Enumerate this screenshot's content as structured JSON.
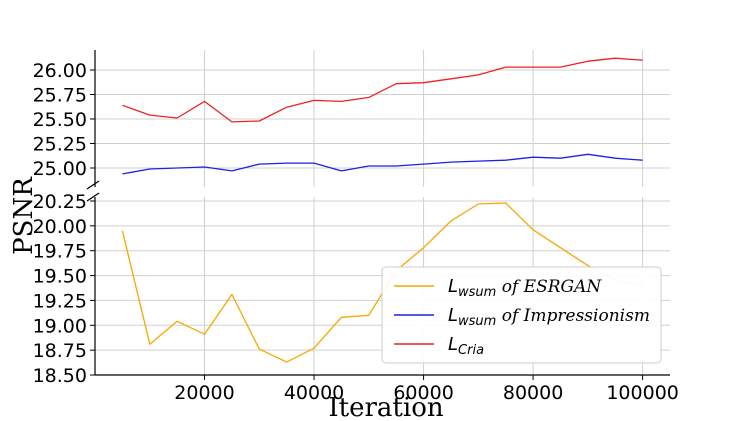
{
  "chart_data": {
    "type": "line",
    "xlabel": "Iteration",
    "ylabel": "PSNR",
    "xlim": [
      0,
      105000
    ],
    "x_ticks": [
      20000,
      40000,
      60000,
      80000,
      100000
    ],
    "broken_y_axis": true,
    "grid": true,
    "legend_position": "lower-right",
    "panels": [
      {
        "name": "top",
        "ylim": [
          24.8,
          26.2
        ],
        "y_ticks": [
          "25.00",
          "25.25",
          "25.50",
          "25.75",
          "26.00"
        ]
      },
      {
        "name": "bottom",
        "ylim": [
          18.5,
          20.3
        ],
        "y_ticks": [
          "18.50",
          "18.75",
          "19.00",
          "19.25",
          "19.50",
          "19.75",
          "20.00",
          "20.25"
        ]
      }
    ],
    "x": [
      5000,
      10000,
      15000,
      20000,
      25000,
      30000,
      35000,
      40000,
      45000,
      50000,
      55000,
      60000,
      65000,
      70000,
      75000,
      80000,
      85000,
      90000,
      95000,
      100000
    ],
    "series": [
      {
        "name": "L_wsum of ESRGAN",
        "legend": {
          "main": "L",
          "sub": "wsum",
          "suffix": " of ESRGAN"
        },
        "color": "#f5a800",
        "panel": "bottom",
        "values": [
          19.95,
          18.81,
          19.04,
          18.91,
          19.31,
          18.76,
          18.63,
          18.77,
          19.08,
          19.1,
          19.55,
          19.78,
          20.05,
          20.22,
          20.23,
          19.96,
          19.78,
          19.6,
          19.45,
          19.4
        ]
      },
      {
        "name": "L_wsum of Impressionism",
        "legend": {
          "main": "L",
          "sub": "wsum",
          "suffix": " of Impressionism"
        },
        "color": "#1f1fe6",
        "panel": "top",
        "values": [
          24.94,
          24.99,
          25.0,
          25.01,
          24.97,
          25.04,
          25.05,
          25.05,
          24.97,
          25.02,
          25.02,
          25.04,
          25.06,
          25.07,
          25.08,
          25.11,
          25.1,
          25.14,
          25.1,
          25.08
        ]
      },
      {
        "name": "L_Cria",
        "legend": {
          "main": "L",
          "sub": "Cria",
          "suffix": ""
        },
        "color": "#ee2222",
        "panel": "top",
        "values": [
          25.64,
          25.54,
          25.51,
          25.68,
          25.47,
          25.48,
          25.62,
          25.69,
          25.68,
          25.72,
          25.86,
          25.87,
          25.91,
          25.95,
          26.03,
          26.03,
          26.03,
          26.09,
          26.12,
          26.1
        ]
      }
    ]
  }
}
